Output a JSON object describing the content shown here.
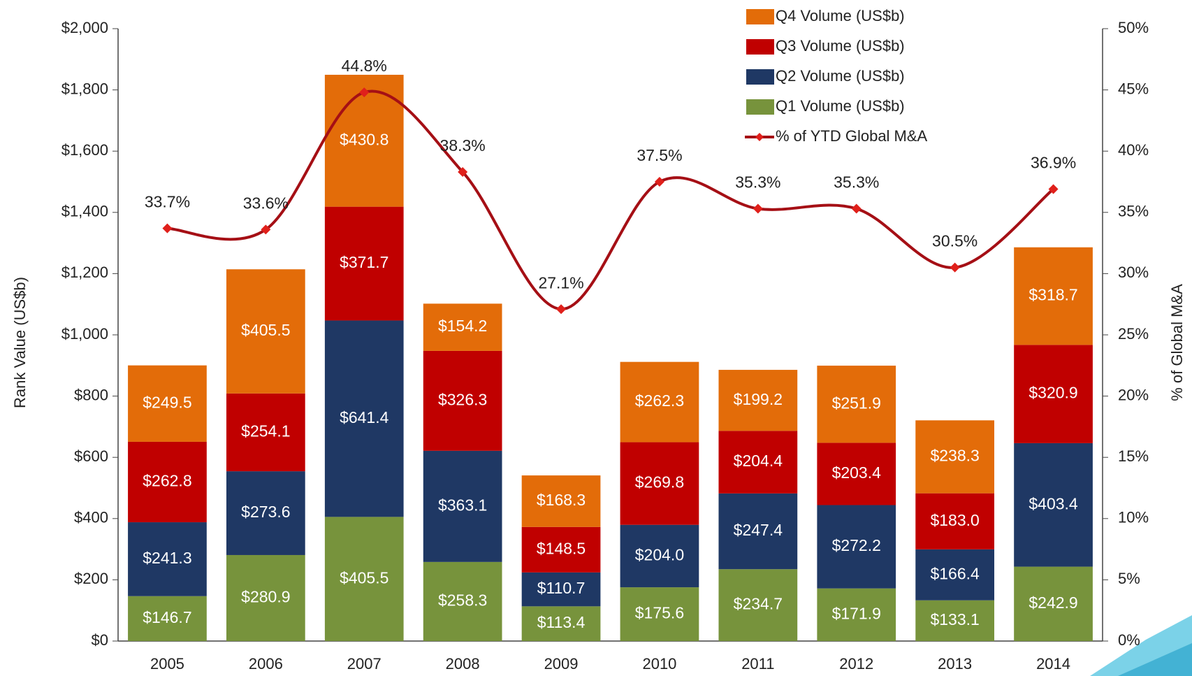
{
  "chart_data": {
    "type": "bar",
    "stacked": true,
    "categories": [
      "2005",
      "2006",
      "2007",
      "2008",
      "2009",
      "2010",
      "2011",
      "2012",
      "2013",
      "2014"
    ],
    "series": [
      {
        "name": "Q1 Volume (US$b)",
        "color": "#77933c",
        "values": [
          146.7,
          280.9,
          405.5,
          258.3,
          113.4,
          175.6,
          234.7,
          171.9,
          133.1,
          242.9
        ],
        "value_labels": [
          "$146.7",
          "$280.9",
          "$405.5",
          "$258.3",
          "$113.4",
          "$175.6",
          "$234.7",
          "$171.9",
          "$133.1",
          "$242.9"
        ]
      },
      {
        "name": "Q2 Volume (US$b)",
        "color": "#1f3864",
        "values": [
          241.3,
          273.6,
          641.4,
          363.1,
          110.7,
          204.0,
          247.4,
          272.2,
          166.4,
          403.4
        ],
        "value_labels": [
          "$241.3",
          "$273.6",
          "$641.4",
          "$363.1",
          "$110.7",
          "$204.0",
          "$247.4",
          "$272.2",
          "$166.4",
          "$403.4"
        ]
      },
      {
        "name": "Q3 Volume (US$b)",
        "color": "#c00000",
        "values": [
          262.8,
          254.1,
          371.7,
          326.3,
          148.5,
          269.8,
          204.4,
          203.4,
          183.0,
          320.9
        ],
        "value_labels": [
          "$262.8",
          "$254.1",
          "$371.7",
          "$326.3",
          "$148.5",
          "$269.8",
          "$204.4",
          "$203.4",
          "$183.0",
          "$320.9"
        ]
      },
      {
        "name": "Q4 Volume (US$b)",
        "color": "#e36c09",
        "values": [
          249.5,
          405.5,
          430.8,
          154.2,
          168.3,
          262.3,
          199.2,
          251.9,
          238.3,
          318.7
        ],
        "value_labels": [
          "$249.5",
          "$405.5",
          "$430.8",
          "$154.2",
          "$168.3",
          "$262.3",
          "$199.2",
          "$251.9",
          "$238.3",
          "$318.7"
        ]
      },
      {
        "name": "% of YTD Global M&A",
        "color": "#a50f15",
        "type": "line",
        "axis": "y2",
        "values": [
          33.7,
          33.6,
          44.8,
          38.3,
          27.1,
          37.5,
          35.3,
          35.3,
          30.5,
          36.9
        ],
        "value_labels": [
          "33.7%",
          "33.6%",
          "44.8%",
          "38.3%",
          "27.1%",
          "37.5%",
          "35.3%",
          "35.3%",
          "30.5%",
          "36.9%"
        ]
      }
    ],
    "y_label": "Rank Value (US$b)",
    "y2_label": "% of Global M&A",
    "ylim": [
      0,
      2000
    ],
    "yticks": [
      {
        "value": 0,
        "label": "$0"
      },
      {
        "value": 200,
        "label": "$200"
      },
      {
        "value": 400,
        "label": "$400"
      },
      {
        "value": 600,
        "label": "$600"
      },
      {
        "value": 800,
        "label": "$800"
      },
      {
        "value": 1000,
        "label": "$1,000"
      },
      {
        "value": 1200,
        "label": "$1,200"
      },
      {
        "value": 1400,
        "label": "$1,400"
      },
      {
        "value": 1600,
        "label": "$1,600"
      },
      {
        "value": 1800,
        "label": "$1,800"
      },
      {
        "value": 2000,
        "label": "$2,000"
      }
    ],
    "y2lim": [
      0,
      50
    ],
    "y2ticks": [
      {
        "value": 0,
        "label": "0%"
      },
      {
        "value": 5,
        "label": "5%"
      },
      {
        "value": 10,
        "label": "10%"
      },
      {
        "value": 15,
        "label": "15%"
      },
      {
        "value": 20,
        "label": "20%"
      },
      {
        "value": 25,
        "label": "25%"
      },
      {
        "value": 30,
        "label": "30%"
      },
      {
        "value": 35,
        "label": "35%"
      },
      {
        "value": 40,
        "label": "40%"
      },
      {
        "value": 45,
        "label": "45%"
      },
      {
        "value": 50,
        "label": "50%"
      }
    ],
    "grid": false,
    "legend": "top-right"
  }
}
